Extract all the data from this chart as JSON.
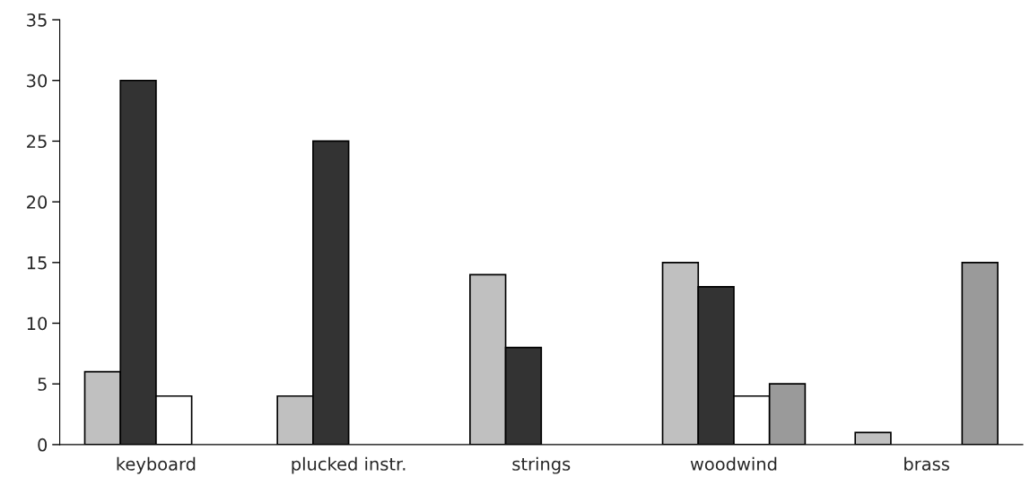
{
  "chart_data": {
    "type": "bar",
    "categories": [
      "keyboard",
      "plucked instr.",
      "strings",
      "woodwind",
      "brass"
    ],
    "series": [
      {
        "color": "#c0c0c0",
        "values": [
          6,
          4,
          14,
          15,
          1
        ]
      },
      {
        "color": "#333333",
        "values": [
          30,
          25,
          8,
          13,
          null
        ]
      },
      {
        "color": "#ffffff",
        "values": [
          4,
          null,
          null,
          4,
          null
        ]
      },
      {
        "color": "#9a9a9a",
        "values": [
          null,
          null,
          null,
          5,
          15
        ]
      }
    ],
    "ylim": [
      0,
      35
    ],
    "yticks": [
      0,
      5,
      10,
      15,
      20,
      25,
      30,
      35
    ],
    "grid": false,
    "legend": false
  }
}
